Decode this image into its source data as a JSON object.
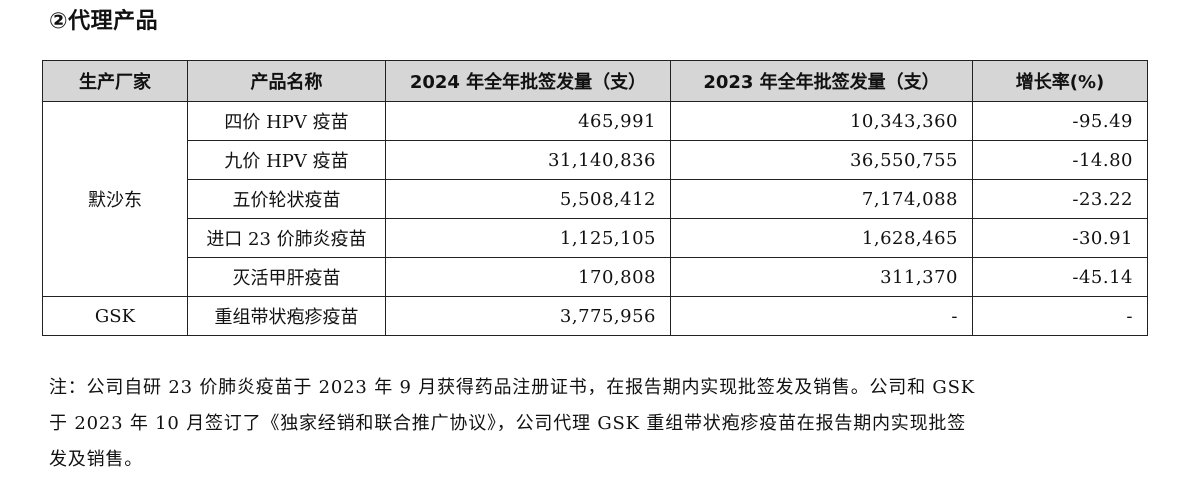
{
  "section": {
    "title": "②代理产品"
  },
  "table": {
    "headers": [
      "生产厂家",
      "产品名称",
      "2024 年全年批签发量（支）",
      "2023 年全年批签发量（支）",
      "增长率(%)"
    ],
    "groups": [
      {
        "manufacturer": "默沙东",
        "rows": [
          {
            "product": "四价 HPV 疫苗",
            "v2024": "465,991",
            "v2023": "10,343,360",
            "growth": "-95.49"
          },
          {
            "product": "九价 HPV 疫苗",
            "v2024": "31,140,836",
            "v2023": "36,550,755",
            "growth": "-14.80"
          },
          {
            "product": "五价轮状疫苗",
            "v2024": "5,508,412",
            "v2023": "7,174,088",
            "growth": "-23.22"
          },
          {
            "product": "进口 23 价肺炎疫苗",
            "v2024": "1,125,105",
            "v2023": "1,628,465",
            "growth": "-30.91"
          },
          {
            "product": "灭活甲肝疫苗",
            "v2024": "170,808",
            "v2023": "311,370",
            "growth": "-45.14"
          }
        ]
      },
      {
        "manufacturer": "GSK",
        "rows": [
          {
            "product": "重组带状疱疹疫苗",
            "v2024": "3,775,956",
            "v2023": "-",
            "growth": "-"
          }
        ]
      }
    ]
  },
  "note": {
    "lines": [
      "注：公司自研 23 价肺炎疫苗于 2023 年 9 月获得药品注册证书，在报告期内实现批签发及销售。公司和 GSK",
      "于 2023 年 10 月签订了《独家经销和联合推广协议》，公司代理 GSK 重组带状疱疹疫苗在报告期内实现批签",
      "发及销售。"
    ]
  }
}
